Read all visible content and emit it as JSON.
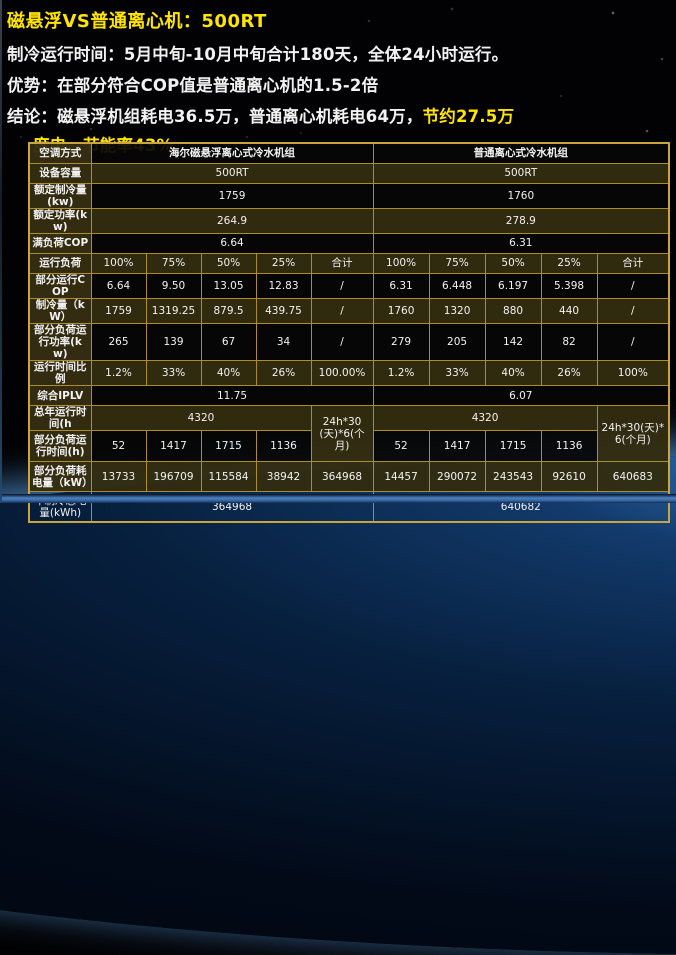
{
  "colors": {
    "title_yellow": "#ffe400",
    "body_white": "#f2f2f2",
    "table_border_gold": "#ad8c2a",
    "row_olive": "#352e11",
    "earth_blue": "#2a62a0",
    "bottom_band_blue": "#4a82c4"
  },
  "header": {
    "line1": "磁悬浮VS普通离心机：500RT",
    "line2": "制冷运行时间：5月中旬-10月中旬合计180天，全体24小时运行。",
    "line3": "优势：在部分符合COP值是普通离心机的1.5-2倍",
    "line4_white": "结论：磁悬浮机组耗电36.5万，普通离心机耗电64万，",
    "line4_yellow": "节约27.5万",
    "line5_yellow": "度电，节能率43%"
  },
  "table": {
    "rows": [
      {
        "cells": [
          {
            "t": "空调方式"
          },
          {
            "t": "海尔磁悬浮离心式冷水机组",
            "cs": 5
          },
          {
            "t": "普通离心式冷水机组",
            "cs": 5
          }
        ]
      },
      {
        "shade": true,
        "cells": [
          {
            "t": "设备容量"
          },
          {
            "t": "500RT",
            "cs": 5
          },
          {
            "t": "500RT",
            "cs": 5
          }
        ]
      },
      {
        "cells": [
          {
            "t": "额定制冷量(kw)"
          },
          {
            "t": "1759",
            "cs": 5
          },
          {
            "t": "1760",
            "cs": 5
          }
        ]
      },
      {
        "shade": true,
        "cells": [
          {
            "t": "额定功率(kw)"
          },
          {
            "t": "264.9",
            "cs": 5
          },
          {
            "t": "278.9",
            "cs": 5
          }
        ]
      },
      {
        "cells": [
          {
            "t": "满负荷COP"
          },
          {
            "t": "6.64",
            "cs": 5
          },
          {
            "t": "6.31",
            "cs": 5
          }
        ]
      },
      {
        "shade": true,
        "cells": [
          {
            "t": "运行负荷"
          },
          {
            "t": "100%"
          },
          {
            "t": "75%"
          },
          {
            "t": "50%"
          },
          {
            "t": "25%"
          },
          {
            "t": "合计"
          },
          {
            "t": "100%"
          },
          {
            "t": "75%"
          },
          {
            "t": "50%"
          },
          {
            "t": "25%"
          },
          {
            "t": "合计"
          }
        ]
      },
      {
        "cells": [
          {
            "t": "部分运行COP"
          },
          {
            "t": "6.64"
          },
          {
            "t": "9.50"
          },
          {
            "t": "13.05"
          },
          {
            "t": "12.83"
          },
          {
            "t": "/"
          },
          {
            "t": "6.31"
          },
          {
            "t": "6.448"
          },
          {
            "t": "6.197"
          },
          {
            "t": "5.398"
          },
          {
            "t": "/"
          }
        ]
      },
      {
        "shade": true,
        "cells": [
          {
            "t": "制冷量（kW）"
          },
          {
            "t": "1759"
          },
          {
            "t": "1319.25"
          },
          {
            "t": "879.5"
          },
          {
            "t": "439.75"
          },
          {
            "t": "/"
          },
          {
            "t": "1760"
          },
          {
            "t": "1320"
          },
          {
            "t": "880"
          },
          {
            "t": "440"
          },
          {
            "t": "/"
          }
        ]
      },
      {
        "cells": [
          {
            "t": "部分负荷运行功率(kw)"
          },
          {
            "t": "265"
          },
          {
            "t": "139"
          },
          {
            "t": "67"
          },
          {
            "t": "34"
          },
          {
            "t": "/"
          },
          {
            "t": "279"
          },
          {
            "t": "205"
          },
          {
            "t": "142"
          },
          {
            "t": "82"
          },
          {
            "t": "/"
          }
        ]
      },
      {
        "shade": true,
        "cells": [
          {
            "t": "运行时间比例"
          },
          {
            "t": "1.2%"
          },
          {
            "t": "33%"
          },
          {
            "t": "40%"
          },
          {
            "t": "26%"
          },
          {
            "t": "100.00%"
          },
          {
            "t": "1.2%"
          },
          {
            "t": "33%"
          },
          {
            "t": "40%"
          },
          {
            "t": "26%"
          },
          {
            "t": "100%"
          }
        ]
      },
      {
        "cells": [
          {
            "t": "综合IPLV"
          },
          {
            "t": "11.75",
            "cs": 5
          },
          {
            "t": "6.07",
            "cs": 5
          }
        ]
      },
      {
        "shade": true,
        "cells": [
          {
            "t": "总年运行时间(h"
          },
          {
            "t": "4320",
            "cs": 4
          },
          {
            "t": "24h*30(天)*6(个月)",
            "rs": 2,
            "shade": true
          },
          {
            "t": "4320",
            "cs": 4
          },
          {
            "t": "24h*30(天)*6(个月)",
            "rs": 2,
            "shade": true
          }
        ]
      },
      {
        "cells": [
          {
            "t": "部分负荷运行时间(h)"
          },
          {
            "t": "52"
          },
          {
            "t": "1417"
          },
          {
            "t": "1715"
          },
          {
            "t": "1136"
          },
          {
            "t": "52"
          },
          {
            "t": "1417"
          },
          {
            "t": "1715"
          },
          {
            "t": "1136"
          }
        ]
      },
      {
        "shade": true,
        "cells": [
          {
            "t": "部分负荷耗电量（kW）"
          },
          {
            "t": "13733"
          },
          {
            "t": "196709"
          },
          {
            "t": "115584"
          },
          {
            "t": "38942"
          },
          {
            "t": "364968"
          },
          {
            "t": "14457"
          },
          {
            "t": "290072"
          },
          {
            "t": "243543"
          },
          {
            "t": "92610"
          },
          {
            "t": "640683"
          }
        ]
      },
      {
        "clear": true,
        "cells": [
          {
            "t": "年制冷总电量(kWh)"
          },
          {
            "t": "364968",
            "cs": 5
          },
          {
            "t": "640682",
            "cs": 5
          }
        ]
      }
    ]
  }
}
